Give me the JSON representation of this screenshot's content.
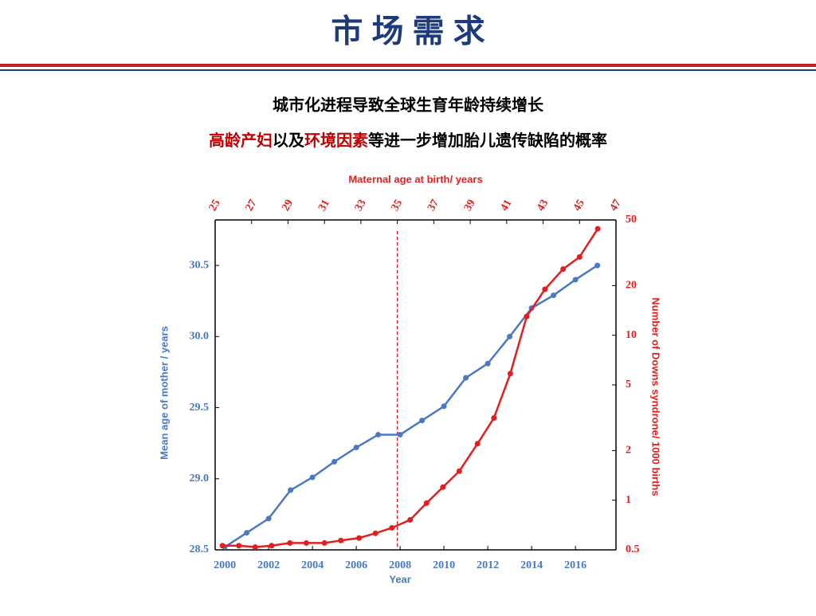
{
  "header": {
    "title": "市 场 需 求"
  },
  "subtitle_1": "城市化进程导致全球生育年龄持续增长",
  "subtitle_2": [
    {
      "text": "高龄产妇",
      "color": "#c00000"
    },
    {
      "text": "以及",
      "color": "#000000"
    },
    {
      "text": "环境因素",
      "color": "#c00000"
    },
    {
      "text": "等进一步增加胎儿遗传缺陷的概率",
      "color": "#000000"
    }
  ],
  "chart_data": {
    "type": "line",
    "x_label": "Year",
    "x2_label": "Maternal age at birth/ years",
    "y_label": "Mean age of mother / years",
    "y2_label": "Number of Downs syndrone/ 1000 births",
    "xlim": [
      1999.56,
      2017.85
    ],
    "xticks": [
      2000,
      2002,
      2004,
      2006,
      2008,
      2010,
      2012,
      2014,
      2016
    ],
    "x2lim": [
      25,
      47
    ],
    "x2ticks": [
      25,
      27,
      29,
      31,
      33,
      35,
      37,
      39,
      41,
      43,
      45,
      47
    ],
    "ylim": [
      28.5,
      30.82
    ],
    "yticks": [
      {
        "value": 28.5,
        "label": "28.5"
      },
      {
        "value": 29.0,
        "label": "29.0"
      },
      {
        "value": 29.5,
        "label": "29.5"
      },
      {
        "value": 30.0,
        "label": "30.0"
      },
      {
        "value": 30.5,
        "label": "30.5"
      }
    ],
    "y2lim": [
      0.5,
      50
    ],
    "y2ticks": [
      0.5,
      1,
      2,
      5,
      10,
      20,
      50
    ],
    "y2_log": true,
    "vline_x2": 35,
    "vline_color": "#e02020",
    "series": [
      {
        "name": "Mean age of mother",
        "color": "#4a78c2",
        "axis": "y",
        "x": [
          2000,
          2001,
          2002,
          2003,
          2004,
          2005,
          2006,
          2007,
          2008,
          2009,
          2010,
          2011,
          2012,
          2013,
          2014,
          2015,
          2016,
          2017
        ],
        "values": [
          28.52,
          28.62,
          28.72,
          28.92,
          29.01,
          29.12,
          29.22,
          29.31,
          29.31,
          29.41,
          29.51,
          29.71,
          29.81,
          30.0,
          30.2,
          30.29,
          30.4,
          30.5
        ]
      },
      {
        "name": "Downs syndrone",
        "color": "#e41e1e",
        "axis": "y2",
        "x": [
          25.4,
          26.3,
          27.2,
          28.1,
          29.1,
          30.0,
          31.0,
          31.9,
          32.9,
          33.8,
          34.7,
          35.7,
          36.6,
          37.5,
          38.4,
          39.4,
          40.3,
          41.2,
          42.1,
          43.1,
          44.1,
          45.0,
          46.0
        ],
        "values": [
          0.53,
          0.53,
          0.52,
          0.53,
          0.55,
          0.55,
          0.55,
          0.57,
          0.59,
          0.63,
          0.68,
          0.76,
          0.96,
          1.2,
          1.5,
          2.2,
          3.15,
          5.85,
          13.0,
          19.0,
          25.2,
          29.8,
          44.2
        ]
      }
    ]
  }
}
